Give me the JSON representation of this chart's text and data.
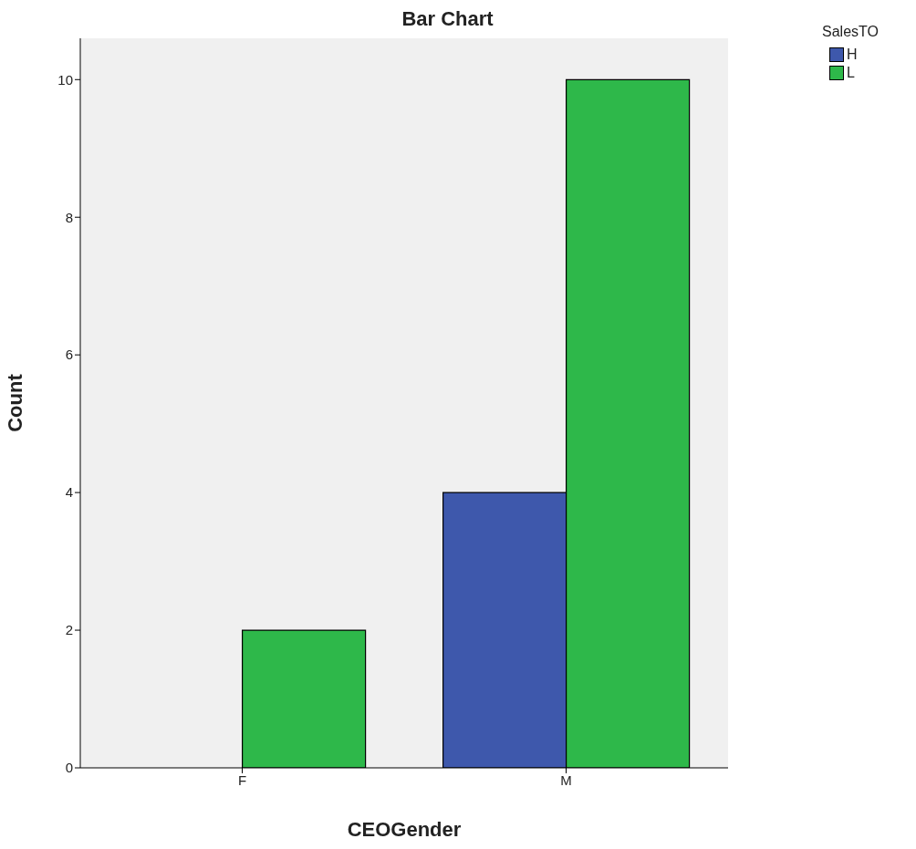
{
  "chart_data": {
    "type": "bar",
    "title": "Bar Chart",
    "xlabel": "CEOGender",
    "ylabel": "Count",
    "legend_title": "SalesTO",
    "categories": [
      "F",
      "M"
    ],
    "series": [
      {
        "name": "H",
        "color": "#3e58ac",
        "values": [
          null,
          4
        ]
      },
      {
        "name": "L",
        "color": "#2eb84a",
        "values": [
          2,
          10
        ]
      }
    ],
    "ylim": [
      0,
      10.6
    ],
    "yticks": [
      0,
      2,
      4,
      6,
      8,
      10
    ],
    "grid": false,
    "legend": "top right"
  }
}
